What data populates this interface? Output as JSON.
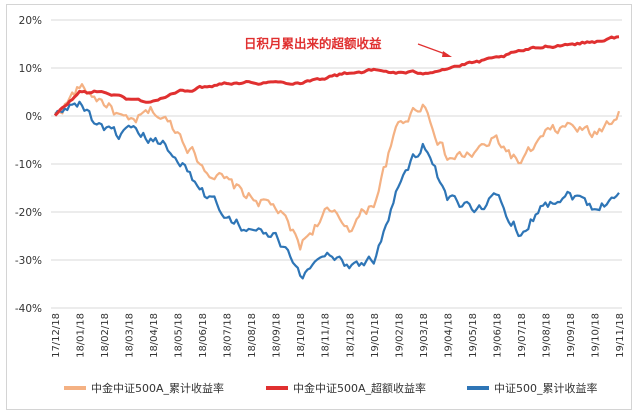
{
  "chart_data": {
    "type": "line",
    "title": "",
    "xlabel": "",
    "ylabel": "",
    "ylim": [
      -40,
      20
    ],
    "yticks": [
      "20%",
      "10%",
      "0%",
      "-10%",
      "-20%",
      "-30%",
      "-40%"
    ],
    "ytick_values": [
      20,
      10,
      0,
      -10,
      -20,
      -30,
      -40
    ],
    "x_tick_labels": [
      "17/12/18",
      "18/01/18",
      "18/02/18",
      "18/03/18",
      "18/04/18",
      "18/05/18",
      "18/06/18",
      "18/07/18",
      "18/08/18",
      "18/09/18",
      "18/10/18",
      "18/11/18",
      "18/12/18",
      "19/01/18",
      "19/02/18",
      "19/03/18",
      "19/04/18",
      "19/05/18",
      "19/06/18",
      "19/07/18",
      "19/08/18",
      "19/09/18",
      "19/10/18",
      "19/11/18"
    ],
    "grid": "horizontal",
    "legend_position": "bottom",
    "annotation": "日积月累出来的超额收益",
    "series": [
      {
        "name": "中金中证500A_累计收益率",
        "color": "#f4b183",
        "values": [
          0,
          6,
          3,
          -2,
          1,
          -3,
          -10,
          -14,
          -17,
          -19,
          -27,
          -20,
          -23,
          -18,
          -2,
          3,
          -9,
          -8,
          -5,
          -10,
          -4,
          -2,
          -4,
          1
        ]
      },
      {
        "name": "中金中证500A_超额收益率",
        "color": "#e03030",
        "values": [
          0,
          5,
          5,
          3.5,
          3,
          5,
          6,
          7,
          7,
          7,
          7,
          8,
          9,
          9.5,
          9,
          9,
          10,
          11,
          12,
          13.5,
          14.5,
          15,
          15.5,
          16.5
        ]
      },
      {
        "name": "中证500_累计收益率",
        "color": "#2e75b6",
        "values": [
          0,
          3,
          -4,
          -4,
          -5,
          -8,
          -16,
          -20,
          -24,
          -25,
          -34,
          -28,
          -31,
          -30,
          -14,
          -6,
          -18,
          -19,
          -17,
          -24,
          -18,
          -16,
          -19,
          -16
        ]
      }
    ]
  }
}
